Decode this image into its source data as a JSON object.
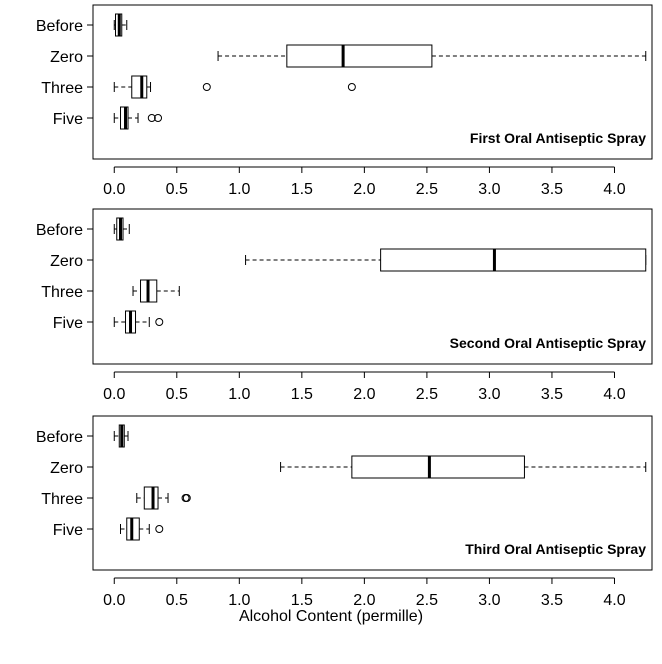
{
  "chart_data": [
    {
      "type": "boxplot",
      "orientation": "horizontal",
      "title": "First Oral Antiseptic Spray",
      "categories": [
        "Before",
        "Zero",
        "Three",
        "Five"
      ],
      "boxes": [
        {
          "category": "Before",
          "whisker_low": 0.0,
          "q1": 0.01,
          "median": 0.04,
          "q3": 0.06,
          "whisker_high": 0.1,
          "outliers": []
        },
        {
          "category": "Zero",
          "whisker_low": 0.83,
          "q1": 1.38,
          "median": 1.83,
          "q3": 2.54,
          "whisker_high": 4.25,
          "outliers": []
        },
        {
          "category": "Three",
          "whisker_low": 0.0,
          "q1": 0.14,
          "median": 0.22,
          "q3": 0.26,
          "whisker_high": 0.29,
          "outliers": [
            0.74,
            1.9
          ]
        },
        {
          "category": "Five",
          "whisker_low": 0.0,
          "q1": 0.05,
          "median": 0.09,
          "q3": 0.11,
          "whisker_high": 0.19,
          "outliers": [
            0.3,
            0.35
          ]
        }
      ],
      "x_ticks": [
        0.0,
        0.5,
        1.0,
        1.5,
        2.0,
        2.5,
        3.0,
        3.5,
        4.0
      ],
      "x_tick_labels": [
        "0.0",
        "0.5",
        "1.0",
        "1.5",
        "2.0",
        "2.5",
        "3.0",
        "3.5",
        "4.0"
      ],
      "xlim": [
        -0.17,
        4.3
      ]
    },
    {
      "type": "boxplot",
      "orientation": "horizontal",
      "title": "Second Oral Antiseptic Spray",
      "categories": [
        "Before",
        "Zero",
        "Three",
        "Five"
      ],
      "boxes": [
        {
          "category": "Before",
          "whisker_low": 0.0,
          "q1": 0.02,
          "median": 0.05,
          "q3": 0.07,
          "whisker_high": 0.12,
          "outliers": []
        },
        {
          "category": "Zero",
          "whisker_low": 1.05,
          "q1": 2.13,
          "median": 3.04,
          "q3": 4.25,
          "whisker_high": 4.25,
          "outliers": []
        },
        {
          "category": "Three",
          "whisker_low": 0.15,
          "q1": 0.21,
          "median": 0.27,
          "q3": 0.34,
          "whisker_high": 0.52,
          "outliers": []
        },
        {
          "category": "Five",
          "whisker_low": 0.0,
          "q1": 0.09,
          "median": 0.13,
          "q3": 0.17,
          "whisker_high": 0.28,
          "outliers": [
            0.36
          ]
        }
      ],
      "x_ticks": [
        0.0,
        0.5,
        1.0,
        1.5,
        2.0,
        2.5,
        3.0,
        3.5,
        4.0
      ],
      "x_tick_labels": [
        "0.0",
        "0.5",
        "1.0",
        "1.5",
        "2.0",
        "2.5",
        "3.0",
        "3.5",
        "4.0"
      ],
      "xlim": [
        -0.17,
        4.3
      ]
    },
    {
      "type": "boxplot",
      "orientation": "horizontal",
      "title": "Third Oral Antiseptic Spray",
      "categories": [
        "Before",
        "Zero",
        "Three",
        "Five"
      ],
      "boxes": [
        {
          "category": "Before",
          "whisker_low": 0.0,
          "q1": 0.04,
          "median": 0.06,
          "q3": 0.08,
          "whisker_high": 0.11,
          "outliers": []
        },
        {
          "category": "Zero",
          "whisker_low": 1.33,
          "q1": 1.9,
          "median": 2.52,
          "q3": 3.28,
          "whisker_high": 4.25,
          "outliers": []
        },
        {
          "category": "Three",
          "whisker_low": 0.18,
          "q1": 0.24,
          "median": 0.31,
          "q3": 0.35,
          "whisker_high": 0.43,
          "outliers": [
            0.57,
            0.58
          ]
        },
        {
          "category": "Five",
          "whisker_low": 0.05,
          "q1": 0.1,
          "median": 0.14,
          "q3": 0.2,
          "whisker_high": 0.28,
          "outliers": [
            0.36
          ]
        }
      ],
      "x_ticks": [
        0.0,
        0.5,
        1.0,
        1.5,
        2.0,
        2.5,
        3.0,
        3.5,
        4.0
      ],
      "x_tick_labels": [
        "0.0",
        "0.5",
        "1.0",
        "1.5",
        "2.0",
        "2.5",
        "3.0",
        "3.5",
        "4.0"
      ],
      "xlim": [
        -0.17,
        4.3
      ]
    }
  ],
  "xlabel": "Alcohol Content (permille)"
}
